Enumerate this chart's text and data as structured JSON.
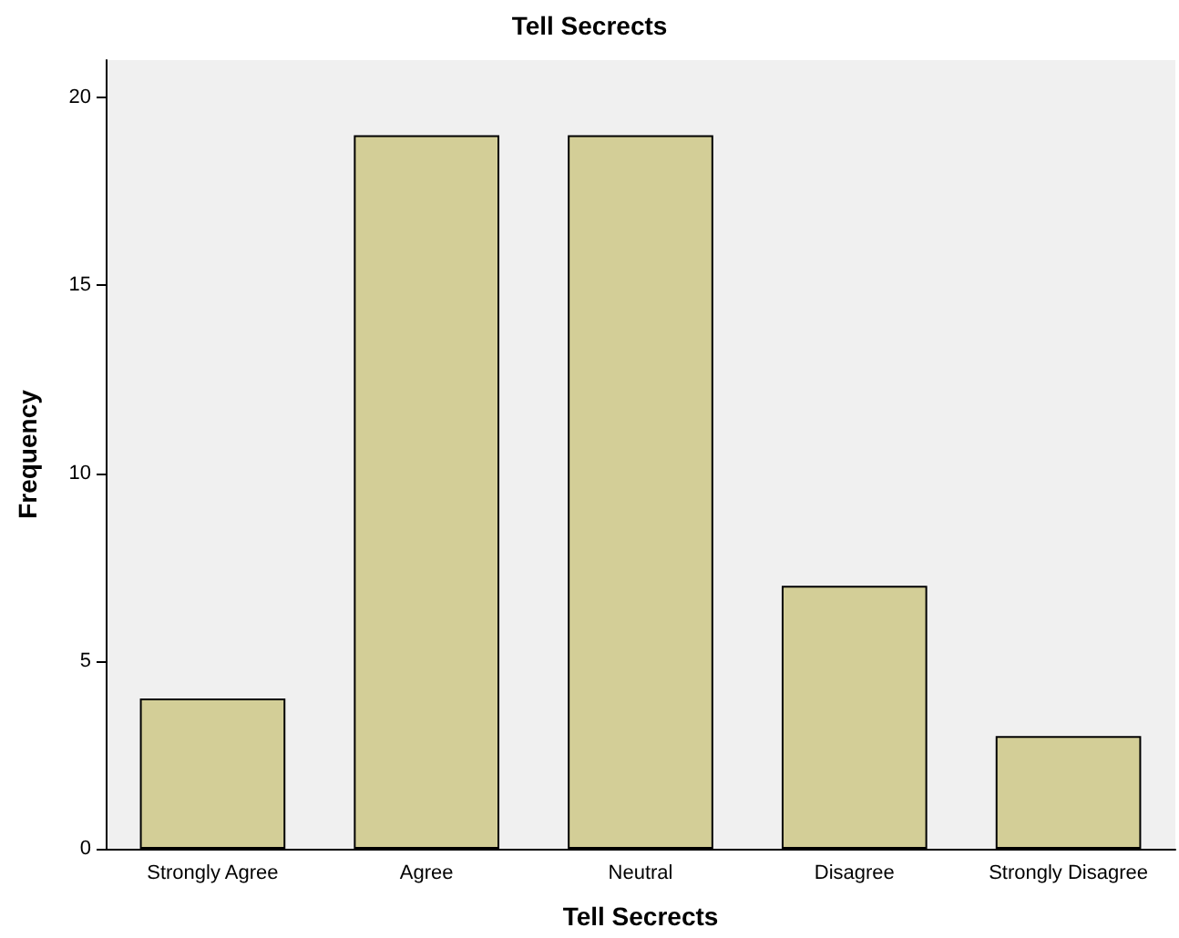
{
  "chart_data": {
    "type": "bar",
    "title": "Tell Secrects",
    "xlabel": "Tell Secrects",
    "ylabel": "Frequency",
    "categories": [
      "Strongly Agree",
      "Agree",
      "Neutral",
      "Disagree",
      "Strongly Disagree"
    ],
    "values": [
      4,
      19,
      19,
      7,
      3
    ],
    "color": "#d3ce97",
    "ylim": [
      0,
      21
    ],
    "yticks": [
      0,
      5,
      10,
      15,
      20
    ],
    "grid": false
  }
}
